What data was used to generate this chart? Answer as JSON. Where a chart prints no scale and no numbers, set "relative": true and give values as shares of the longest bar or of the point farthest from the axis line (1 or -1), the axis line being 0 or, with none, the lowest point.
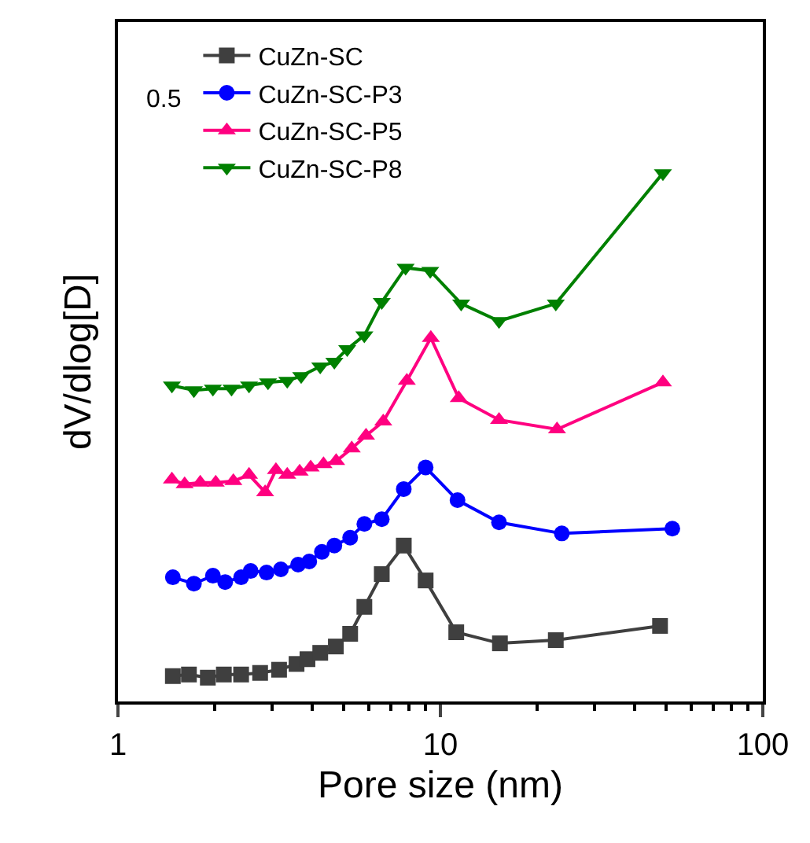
{
  "chart_data": {
    "type": "line",
    "xlabel": "Pore size (nm)",
    "ylabel": "dV/dlog[D]",
    "relative": true,
    "log": "x",
    "xlim": [
      1,
      100
    ],
    "xticks": [
      1,
      10,
      100
    ],
    "legend": "top left",
    "annotations": [
      "0.5"
    ],
    "series": [
      {
        "name": "CuZn-SC",
        "color": "#3f3f3f",
        "marker": "square",
        "x": [
          1.48,
          1.66,
          1.9,
          2.13,
          2.41,
          2.76,
          3.16,
          3.58,
          3.87,
          4.24,
          4.74,
          5.25,
          5.81,
          6.58,
          7.7,
          9.0,
          11.2,
          15.3,
          22.8,
          48
        ],
        "values": [
          0.048,
          0.051,
          0.045,
          0.051,
          0.051,
          0.054,
          0.06,
          0.071,
          0.08,
          0.092,
          0.104,
          0.128,
          0.179,
          0.241,
          0.295,
          0.229,
          0.131,
          0.11,
          0.116,
          0.143
        ]
      },
      {
        "name": "CuZn-SC-P3",
        "color": "#0000ff",
        "marker": "circle",
        "x": [
          1.48,
          1.72,
          1.97,
          2.15,
          2.41,
          2.58,
          2.89,
          3.2,
          3.62,
          3.92,
          4.29,
          4.69,
          5.25,
          5.81,
          6.58,
          7.7,
          9.0,
          11.3,
          15.2,
          23.8,
          52.4
        ],
        "values": [
          0.235,
          0.223,
          0.238,
          0.226,
          0.235,
          0.247,
          0.244,
          0.25,
          0.259,
          0.265,
          0.283,
          0.295,
          0.31,
          0.336,
          0.345,
          0.402,
          0.443,
          0.381,
          0.339,
          0.318,
          0.327
        ]
      },
      {
        "name": "CuZn-SC-P5",
        "color": "#ff0080",
        "marker": "triangle",
        "x": [
          1.47,
          1.61,
          1.8,
          2.01,
          2.28,
          2.55,
          2.86,
          3.09,
          3.35,
          3.66,
          3.96,
          4.34,
          4.75,
          5.31,
          5.88,
          6.65,
          7.87,
          9.34,
          11.4,
          15.2,
          23.0,
          49.0
        ],
        "values": [
          0.42,
          0.411,
          0.414,
          0.414,
          0.417,
          0.429,
          0.396,
          0.438,
          0.429,
          0.435,
          0.443,
          0.449,
          0.455,
          0.479,
          0.503,
          0.53,
          0.607,
          0.688,
          0.574,
          0.533,
          0.515,
          0.604
        ]
      },
      {
        "name": "CuZn-SC-P8",
        "color": "#008000",
        "marker": "triangle-down",
        "x": [
          1.47,
          1.72,
          1.97,
          2.25,
          2.55,
          2.92,
          3.35,
          3.7,
          4.24,
          4.69,
          5.14,
          5.81,
          6.58,
          7.8,
          9.3,
          11.6,
          15.2,
          22.8,
          49.0
        ],
        "values": [
          0.598,
          0.589,
          0.592,
          0.592,
          0.598,
          0.604,
          0.607,
          0.616,
          0.634,
          0.643,
          0.667,
          0.693,
          0.756,
          0.821,
          0.815,
          0.753,
          0.72,
          0.753,
          1
        ]
      }
    ]
  }
}
